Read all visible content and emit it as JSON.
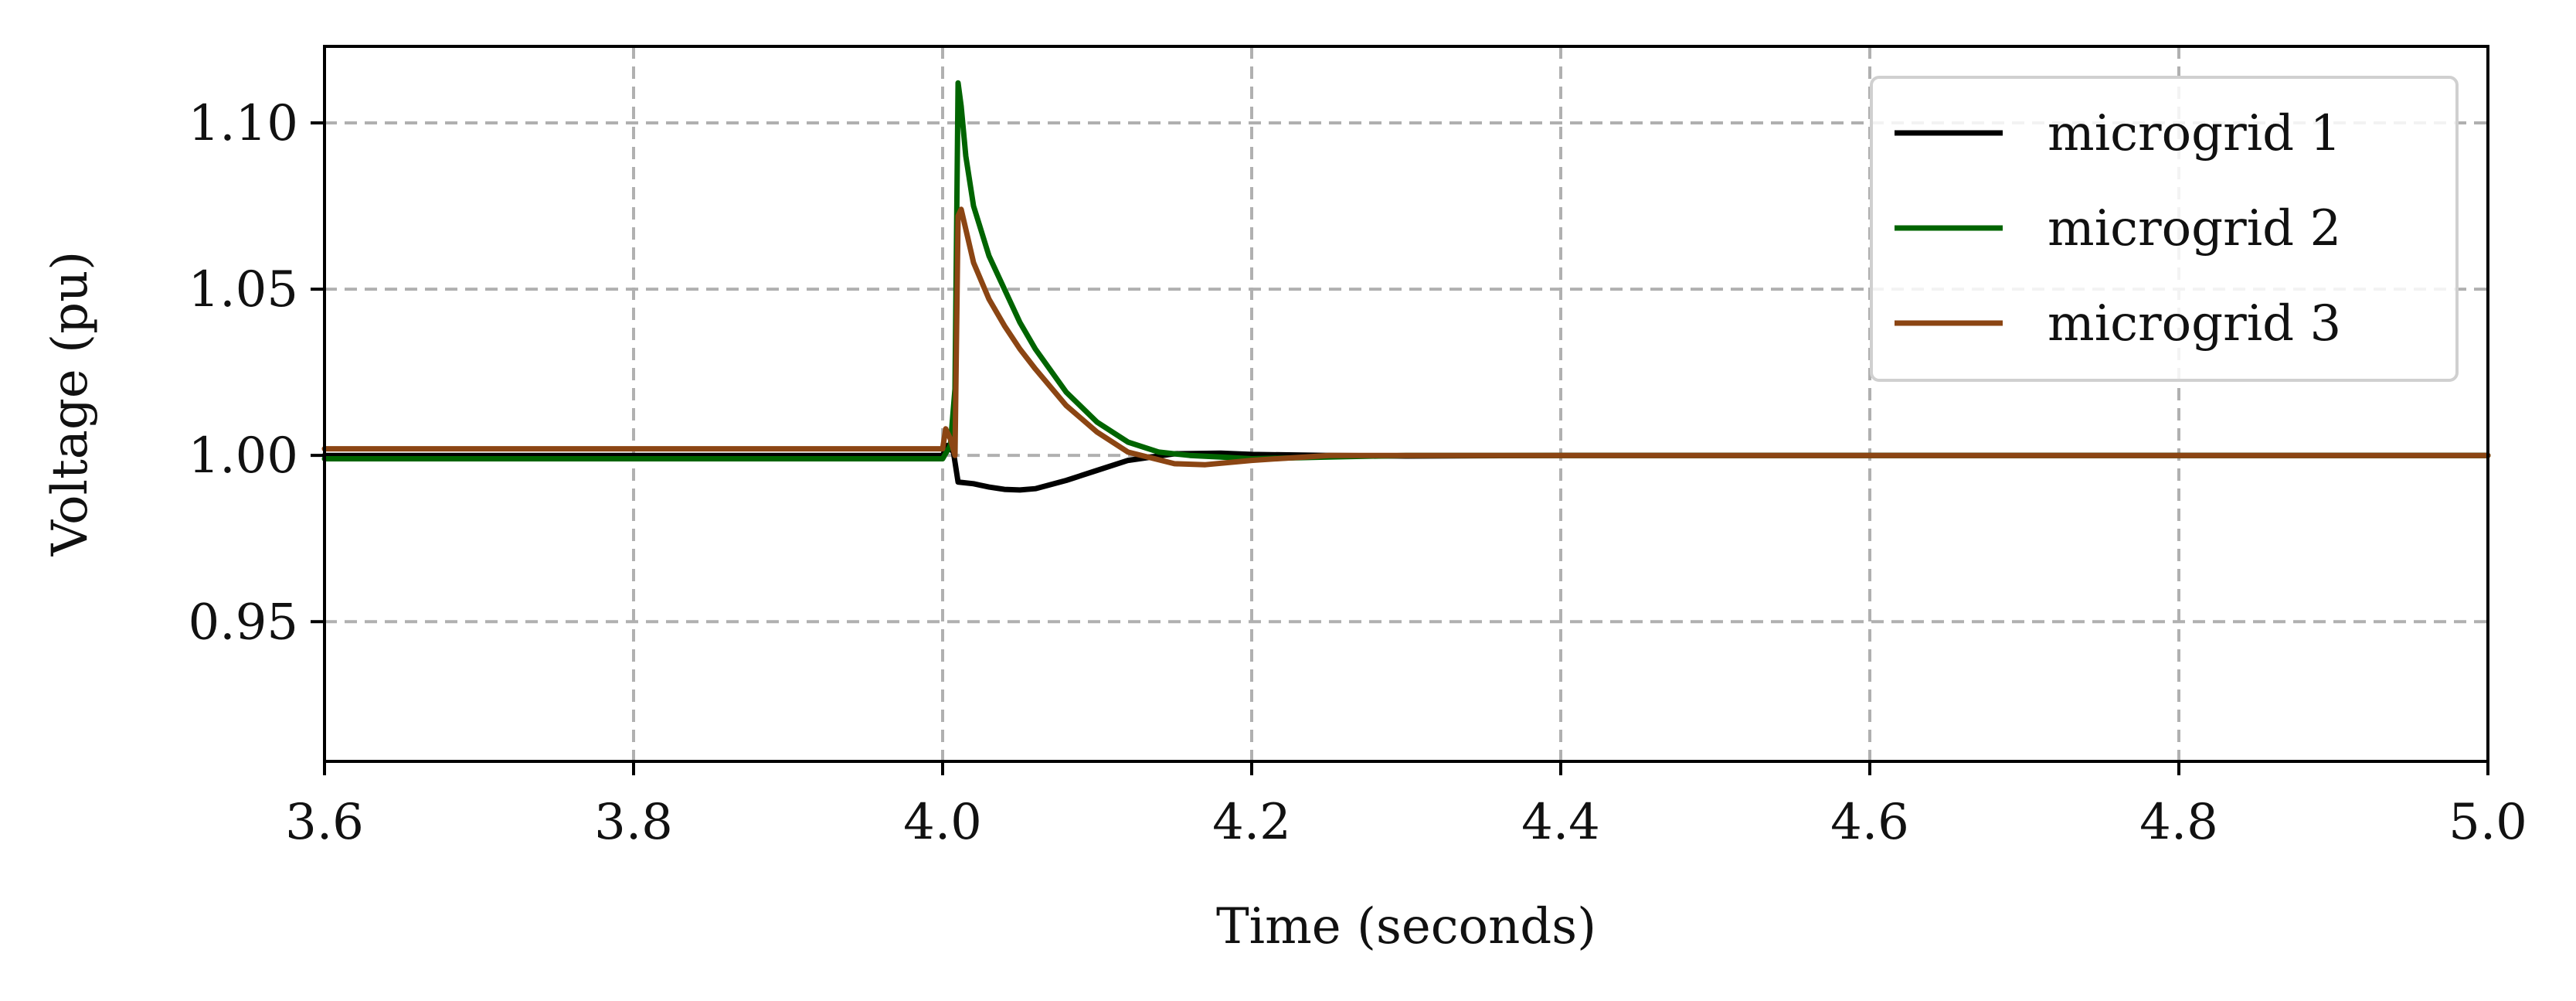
{
  "chart_data": {
    "type": "line",
    "title": "",
    "xlabel": "Time (seconds)",
    "ylabel": "Voltage (pu)",
    "xlim": [
      3.6,
      5.0
    ],
    "ylim": [
      0.908,
      1.123
    ],
    "xticks": [
      3.6,
      3.8,
      4.0,
      4.2,
      4.4,
      4.6,
      4.8,
      5.0
    ],
    "xtick_labels": [
      "3.6",
      "3.8",
      "4.0",
      "4.2",
      "4.4",
      "4.6",
      "4.8",
      "5.0"
    ],
    "yticks": [
      0.95,
      1.0,
      1.05,
      1.1
    ],
    "ytick_labels": [
      "0.95",
      "1.00",
      "1.05",
      "1.10"
    ],
    "grid": true,
    "legend_position": "top-right",
    "series": [
      {
        "name": "microgrid 1",
        "color": "#000000",
        "x": [
          3.6,
          4.0,
          4.003,
          4.007,
          4.01,
          4.02,
          4.03,
          4.04,
          4.05,
          4.06,
          4.08,
          4.1,
          4.12,
          4.15,
          4.18,
          4.2,
          4.25,
          4.3,
          4.4,
          5.0
        ],
        "y": [
          1.0,
          1.0,
          1.003,
          1.001,
          0.992,
          0.9915,
          0.9905,
          0.9898,
          0.9896,
          0.99,
          0.9925,
          0.9955,
          0.9985,
          1.0005,
          1.0007,
          1.0003,
          1.0,
          0.9998,
          1.0,
          1.0
        ]
      },
      {
        "name": "microgrid 2",
        "color": "#006400",
        "x": [
          3.6,
          4.0,
          4.005,
          4.008,
          4.01,
          4.012,
          4.015,
          4.02,
          4.03,
          4.04,
          4.05,
          4.06,
          4.08,
          4.1,
          4.12,
          4.14,
          4.16,
          4.18,
          4.2,
          4.25,
          4.3,
          5.0
        ],
        "y": [
          0.999,
          0.999,
          1.003,
          1.02,
          1.112,
          1.105,
          1.09,
          1.075,
          1.06,
          1.05,
          1.04,
          1.032,
          1.019,
          1.01,
          1.004,
          1.001,
          1.0,
          0.9995,
          0.999,
          0.9995,
          1.0,
          1.0
        ]
      },
      {
        "name": "microgrid 3",
        "color": "#8B4513",
        "x": [
          3.6,
          4.0,
          4.002,
          4.005,
          4.008,
          4.01,
          4.012,
          4.015,
          4.02,
          4.03,
          4.04,
          4.05,
          4.06,
          4.08,
          4.1,
          4.12,
          4.15,
          4.17,
          4.2,
          4.25,
          4.3,
          5.0
        ],
        "y": [
          1.002,
          1.002,
          1.008,
          1.005,
          1.0,
          1.072,
          1.074,
          1.068,
          1.058,
          1.047,
          1.039,
          1.032,
          1.026,
          1.015,
          1.007,
          1.001,
          0.9975,
          0.9972,
          0.9985,
          1.0,
          1.0,
          1.0
        ]
      }
    ]
  }
}
